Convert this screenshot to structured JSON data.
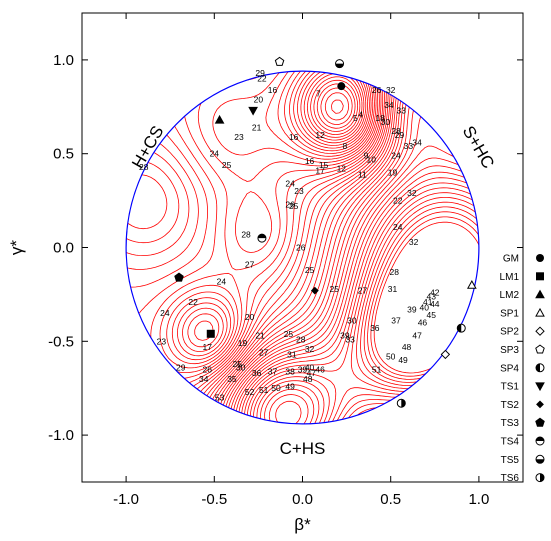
{
  "chart_data": {
    "type": "contour",
    "title": "",
    "xlabel": "β*",
    "ylabel": "γ*",
    "xlim": [
      -1.25,
      1.25
    ],
    "ylim": [
      -1.25,
      1.25
    ],
    "xticks": [
      -1.0,
      -0.5,
      0.0,
      0.5,
      1.0
    ],
    "xtick_labels": [
      "-1.0",
      "-0.5",
      "0.0",
      "0.5",
      "1.0"
    ],
    "yticks": [
      -1.0,
      -0.5,
      0.0,
      0.5,
      1.0
    ],
    "ytick_labels": [
      "-1.0",
      "-0.5",
      "0.0",
      "0.5",
      "1.0"
    ],
    "grid": false,
    "boundary": "unit circle",
    "colors": {
      "contours": "#ff0000",
      "boundary": "#0000ff",
      "axes": "#000000"
    },
    "regions": [
      {
        "label": "H+CS",
        "x": -0.85,
        "y": 0.52,
        "rotate": -60
      },
      {
        "label": "S+HC",
        "x": 0.97,
        "y": 0.52,
        "rotate": 60
      },
      {
        "label": "C+HS",
        "x": 0.0,
        "y": -1.1,
        "rotate": 0
      }
    ],
    "legend": {
      "position": "right",
      "entries": [
        {
          "label": "GM",
          "marker": "filled-circle"
        },
        {
          "label": "LM1",
          "marker": "filled-square"
        },
        {
          "label": "LM2",
          "marker": "filled-triangle-up"
        },
        {
          "label": "SP1",
          "marker": "open-triangle-up"
        },
        {
          "label": "SP2",
          "marker": "open-diamond"
        },
        {
          "label": "SP3",
          "marker": "open-pentagon"
        },
        {
          "label": "SP4",
          "marker": "half-circle-left"
        },
        {
          "label": "TS1",
          "marker": "filled-triangle-down"
        },
        {
          "label": "TS2",
          "marker": "filled-diamond"
        },
        {
          "label": "TS3",
          "marker": "filled-pentagon"
        },
        {
          "label": "TS4",
          "marker": "half-circle-top"
        },
        {
          "label": "TS5",
          "marker": "half-circle-bottom"
        },
        {
          "label": "TS6",
          "marker": "half-circle-right"
        }
      ]
    },
    "points": [
      {
        "name": "GM",
        "x": 0.22,
        "y": 0.86
      },
      {
        "name": "LM1",
        "x": -0.52,
        "y": -0.46
      },
      {
        "name": "LM2",
        "x": -0.47,
        "y": 0.68
      },
      {
        "name": "SP1",
        "x": 0.96,
        "y": -0.2
      },
      {
        "name": "SP2",
        "x": 0.81,
        "y": -0.57
      },
      {
        "name": "SP3",
        "x": -0.13,
        "y": 0.99
      },
      {
        "name": "SP4",
        "x": 0.9,
        "y": -0.43
      },
      {
        "name": "TS1",
        "x": -0.28,
        "y": 0.73
      },
      {
        "name": "TS2",
        "x": 0.07,
        "y": -0.23
      },
      {
        "name": "TS3",
        "x": -0.7,
        "y": -0.16
      },
      {
        "name": "TS4",
        "x": -0.23,
        "y": 0.05
      },
      {
        "name": "TS5",
        "x": 0.21,
        "y": 0.98
      },
      {
        "name": "TS6",
        "x": 0.56,
        "y": -0.83
      }
    ],
    "contour_labels": [
      {
        "text": "7",
        "x": 0.09,
        "y": 0.82
      },
      {
        "text": "16",
        "x": -0.17,
        "y": 0.84
      },
      {
        "text": "20",
        "x": -0.25,
        "y": 0.79
      },
      {
        "text": "22",
        "x": -0.23,
        "y": 0.9
      },
      {
        "text": "29",
        "x": -0.24,
        "y": 0.93
      },
      {
        "text": "26",
        "x": 0.42,
        "y": 0.84
      },
      {
        "text": "32",
        "x": 0.5,
        "y": 0.84
      },
      {
        "text": "34",
        "x": 0.49,
        "y": 0.76
      },
      {
        "text": "33",
        "x": 0.56,
        "y": 0.73
      },
      {
        "text": "4",
        "x": 0.33,
        "y": 0.71
      },
      {
        "text": "5",
        "x": 0.3,
        "y": 0.69
      },
      {
        "text": "18",
        "x": 0.44,
        "y": 0.69
      },
      {
        "text": "30",
        "x": 0.47,
        "y": 0.67
      },
      {
        "text": "21",
        "x": -0.26,
        "y": 0.64
      },
      {
        "text": "23",
        "x": -0.36,
        "y": 0.59
      },
      {
        "text": "16",
        "x": -0.05,
        "y": 0.59
      },
      {
        "text": "12",
        "x": 0.1,
        "y": 0.6
      },
      {
        "text": "8",
        "x": 0.24,
        "y": 0.54
      },
      {
        "text": "28",
        "x": 0.53,
        "y": 0.62
      },
      {
        "text": "29",
        "x": 0.55,
        "y": 0.6
      },
      {
        "text": "33",
        "x": 0.6,
        "y": 0.54
      },
      {
        "text": "34",
        "x": 0.65,
        "y": 0.56
      },
      {
        "text": "24",
        "x": -0.5,
        "y": 0.5
      },
      {
        "text": "25",
        "x": -0.43,
        "y": 0.44
      },
      {
        "text": "16",
        "x": 0.04,
        "y": 0.46
      },
      {
        "text": "15",
        "x": 0.12,
        "y": 0.44
      },
      {
        "text": "17",
        "x": 0.1,
        "y": 0.41
      },
      {
        "text": "12",
        "x": 0.22,
        "y": 0.42
      },
      {
        "text": "11",
        "x": 0.34,
        "y": 0.39
      },
      {
        "text": "9",
        "x": 0.36,
        "y": 0.49
      },
      {
        "text": "10",
        "x": 0.39,
        "y": 0.47
      },
      {
        "text": "24",
        "x": 0.53,
        "y": 0.49
      },
      {
        "text": "19",
        "x": 0.51,
        "y": 0.4
      },
      {
        "text": "28",
        "x": -0.9,
        "y": 0.43
      },
      {
        "text": "24",
        "x": -0.07,
        "y": 0.34
      },
      {
        "text": "23",
        "x": -0.02,
        "y": 0.3
      },
      {
        "text": "26",
        "x": -0.07,
        "y": 0.23
      },
      {
        "text": "25",
        "x": -0.05,
        "y": 0.22
      },
      {
        "text": "22",
        "x": 0.54,
        "y": 0.25
      },
      {
        "text": "32",
        "x": 0.62,
        "y": 0.29
      },
      {
        "text": "28",
        "x": -0.32,
        "y": 0.07
      },
      {
        "text": "26",
        "x": -0.01,
        "y": 0.0
      },
      {
        "text": "24",
        "x": 0.54,
        "y": 0.11
      },
      {
        "text": "32",
        "x": 0.63,
        "y": 0.03
      },
      {
        "text": "27",
        "x": -0.3,
        "y": -0.09
      },
      {
        "text": "25",
        "x": 0.04,
        "y": -0.12
      },
      {
        "text": "28",
        "x": 0.52,
        "y": -0.13
      },
      {
        "text": "24",
        "x": -0.46,
        "y": -0.18
      },
      {
        "text": "25",
        "x": 0.18,
        "y": -0.22
      },
      {
        "text": "27",
        "x": 0.34,
        "y": -0.23
      },
      {
        "text": "31",
        "x": 0.51,
        "y": -0.22
      },
      {
        "text": "42",
        "x": 0.75,
        "y": -0.24
      },
      {
        "text": "43",
        "x": 0.73,
        "y": -0.26
      },
      {
        "text": "22",
        "x": -0.62,
        "y": -0.29
      },
      {
        "text": "41",
        "x": 0.71,
        "y": -0.29
      },
      {
        "text": "40",
        "x": 0.69,
        "y": -0.32
      },
      {
        "text": "39",
        "x": 0.62,
        "y": -0.33
      },
      {
        "text": "44",
        "x": 0.75,
        "y": -0.3
      },
      {
        "text": "24",
        "x": -0.78,
        "y": -0.35
      },
      {
        "text": "20",
        "x": -0.3,
        "y": -0.37
      },
      {
        "text": "30",
        "x": 0.28,
        "y": -0.39
      },
      {
        "text": "37",
        "x": 0.53,
        "y": -0.39
      },
      {
        "text": "45",
        "x": 0.73,
        "y": -0.36
      },
      {
        "text": "36",
        "x": 0.41,
        "y": -0.43
      },
      {
        "text": "46",
        "x": 0.68,
        "y": -0.4
      },
      {
        "text": "47",
        "x": 0.65,
        "y": -0.47
      },
      {
        "text": "23",
        "x": -0.8,
        "y": -0.5
      },
      {
        "text": "21",
        "x": -0.24,
        "y": -0.47
      },
      {
        "text": "25",
        "x": -0.08,
        "y": -0.46
      },
      {
        "text": "28",
        "x": -0.01,
        "y": -0.49
      },
      {
        "text": "39",
        "x": 0.24,
        "y": -0.47
      },
      {
        "text": "33",
        "x": 0.27,
        "y": -0.49
      },
      {
        "text": "17",
        "x": -0.54,
        "y": -0.53
      },
      {
        "text": "19",
        "x": -0.34,
        "y": -0.51
      },
      {
        "text": "32",
        "x": 0.04,
        "y": -0.54
      },
      {
        "text": "48",
        "x": 0.59,
        "y": -0.53
      },
      {
        "text": "50",
        "x": 0.5,
        "y": -0.58
      },
      {
        "text": "27",
        "x": -0.22,
        "y": -0.56
      },
      {
        "text": "31",
        "x": -0.06,
        "y": -0.57
      },
      {
        "text": "49",
        "x": 0.57,
        "y": -0.6
      },
      {
        "text": "25",
        "x": -0.37,
        "y": -0.62
      },
      {
        "text": "30",
        "x": -0.35,
        "y": -0.64
      },
      {
        "text": "40",
        "x": 0.04,
        "y": -0.64
      },
      {
        "text": "39",
        "x": 0.0,
        "y": -0.65
      },
      {
        "text": "38",
        "x": -0.07,
        "y": -0.66
      },
      {
        "text": "29",
        "x": -0.69,
        "y": -0.64
      },
      {
        "text": "26",
        "x": -0.54,
        "y": -0.65
      },
      {
        "text": "36",
        "x": -0.26,
        "y": -0.67
      },
      {
        "text": "37",
        "x": -0.17,
        "y": -0.66
      },
      {
        "text": "47",
        "x": 0.05,
        "y": -0.67
      },
      {
        "text": "46",
        "x": 0.1,
        "y": -0.65
      },
      {
        "text": "51",
        "x": 0.42,
        "y": -0.65
      },
      {
        "text": "34",
        "x": -0.56,
        "y": -0.7
      },
      {
        "text": "35",
        "x": -0.4,
        "y": -0.7
      },
      {
        "text": "48",
        "x": 0.03,
        "y": -0.7
      },
      {
        "text": "49",
        "x": -0.07,
        "y": -0.74
      },
      {
        "text": "50",
        "x": -0.15,
        "y": -0.75
      },
      {
        "text": "51",
        "x": -0.22,
        "y": -0.76
      },
      {
        "text": "52",
        "x": -0.3,
        "y": -0.77
      },
      {
        "text": "53",
        "x": -0.47,
        "y": -0.8
      }
    ]
  }
}
